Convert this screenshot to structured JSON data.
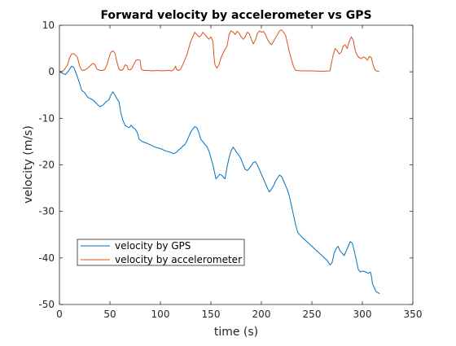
{
  "chart_data": {
    "type": "line",
    "title": "Forward velocity by accelerometer vs GPS",
    "xlabel": "time (s)",
    "ylabel": "velocity (m/s)",
    "xlim": [
      0,
      350
    ],
    "ylim": [
      -50,
      10
    ],
    "x_ticks": [
      0,
      50,
      100,
      150,
      200,
      250,
      300,
      350
    ],
    "y_ticks": [
      -50,
      -40,
      -30,
      -20,
      -10,
      0,
      10
    ],
    "grid": false,
    "legend_position": "lower-left",
    "series": [
      {
        "name": "velocity by GPS",
        "color": "#0072BD",
        "points": [
          [
            0,
            0
          ],
          [
            3,
            -0.3
          ],
          [
            6,
            -0.6
          ],
          [
            9,
            0.2
          ],
          [
            12,
            1.2
          ],
          [
            14,
            1.0
          ],
          [
            16,
            0.0
          ],
          [
            18,
            -1.2
          ],
          [
            20,
            -2.5
          ],
          [
            22,
            -4.0
          ],
          [
            25,
            -4.5
          ],
          [
            28,
            -5.5
          ],
          [
            31,
            -5.8
          ],
          [
            34,
            -6.2
          ],
          [
            37,
            -6.9
          ],
          [
            40,
            -7.5
          ],
          [
            43,
            -7.2
          ],
          [
            46,
            -6.5
          ],
          [
            49,
            -6.0
          ],
          [
            51,
            -5.0
          ],
          [
            53,
            -4.3
          ],
          [
            55,
            -5.0
          ],
          [
            57,
            -5.8
          ],
          [
            59,
            -6.5
          ],
          [
            61,
            -9.0
          ],
          [
            63,
            -10.5
          ],
          [
            65,
            -11.5
          ],
          [
            67,
            -11.8
          ],
          [
            69,
            -12.0
          ],
          [
            71,
            -11.5
          ],
          [
            73,
            -12.0
          ],
          [
            75,
            -12.3
          ],
          [
            77,
            -13.0
          ],
          [
            79,
            -14.5
          ],
          [
            82,
            -15.0
          ],
          [
            86,
            -15.3
          ],
          [
            90,
            -15.7
          ],
          [
            95,
            -16.2
          ],
          [
            100,
            -16.5
          ],
          [
            105,
            -17.0
          ],
          [
            110,
            -17.3
          ],
          [
            113,
            -17.6
          ],
          [
            116,
            -17.3
          ],
          [
            118,
            -16.8
          ],
          [
            120,
            -16.5
          ],
          [
            122,
            -16.0
          ],
          [
            124,
            -15.7
          ],
          [
            126,
            -15.0
          ],
          [
            128,
            -14.0
          ],
          [
            130,
            -13.0
          ],
          [
            132,
            -12.3
          ],
          [
            134,
            -11.8
          ],
          [
            136,
            -12.0
          ],
          [
            138,
            -13.0
          ],
          [
            140,
            -14.5
          ],
          [
            142,
            -15.0
          ],
          [
            144,
            -15.6
          ],
          [
            146,
            -16.0
          ],
          [
            148,
            -17.0
          ],
          [
            150,
            -18.5
          ],
          [
            152,
            -20.0
          ],
          [
            154,
            -22.0
          ],
          [
            155,
            -23.0
          ],
          [
            157,
            -22.5
          ],
          [
            159,
            -22.0
          ],
          [
            161,
            -22.3
          ],
          [
            163,
            -22.8
          ],
          [
            164,
            -23.0
          ],
          [
            166,
            -20.5
          ],
          [
            168,
            -18.5
          ],
          [
            170,
            -17.0
          ],
          [
            172,
            -16.2
          ],
          [
            174,
            -16.8
          ],
          [
            176,
            -17.5
          ],
          [
            178,
            -18.0
          ],
          [
            180,
            -18.8
          ],
          [
            182,
            -20.0
          ],
          [
            184,
            -21.0
          ],
          [
            186,
            -21.2
          ],
          [
            188,
            -20.8
          ],
          [
            190,
            -20.2
          ],
          [
            192,
            -19.5
          ],
          [
            194,
            -19.3
          ],
          [
            196,
            -20.0
          ],
          [
            198,
            -21.0
          ],
          [
            200,
            -22.0
          ],
          [
            202,
            -23.0
          ],
          [
            204,
            -24.0
          ],
          [
            206,
            -25.0
          ],
          [
            208,
            -25.8
          ],
          [
            210,
            -25.2
          ],
          [
            212,
            -24.5
          ],
          [
            214,
            -23.5
          ],
          [
            216,
            -22.8
          ],
          [
            218,
            -22.2
          ],
          [
            220,
            -22.5
          ],
          [
            222,
            -23.5
          ],
          [
            224,
            -24.5
          ],
          [
            226,
            -25.5
          ],
          [
            228,
            -27.0
          ],
          [
            230,
            -29.0
          ],
          [
            232,
            -31.0
          ],
          [
            234,
            -33.0
          ],
          [
            236,
            -34.5
          ],
          [
            240,
            -35.5
          ],
          [
            245,
            -36.5
          ],
          [
            250,
            -37.5
          ],
          [
            255,
            -38.5
          ],
          [
            260,
            -39.5
          ],
          [
            265,
            -40.5
          ],
          [
            268,
            -41.5
          ],
          [
            270,
            -41.0
          ],
          [
            272,
            -39.0
          ],
          [
            274,
            -38.0
          ],
          [
            276,
            -37.5
          ],
          [
            278,
            -38.5
          ],
          [
            280,
            -39.0
          ],
          [
            282,
            -39.5
          ],
          [
            284,
            -38.5
          ],
          [
            286,
            -37.5
          ],
          [
            288,
            -36.5
          ],
          [
            290,
            -36.8
          ],
          [
            292,
            -38.5
          ],
          [
            294,
            -40.5
          ],
          [
            296,
            -42.5
          ],
          [
            298,
            -43.0
          ],
          [
            300,
            -42.8
          ],
          [
            303,
            -43.0
          ],
          [
            306,
            -43.3
          ],
          [
            308,
            -43.0
          ],
          [
            309,
            -44.0
          ],
          [
            310,
            -45.5
          ],
          [
            311,
            -46.0
          ],
          [
            312,
            -46.5
          ],
          [
            313,
            -47.0
          ],
          [
            314,
            -47.3
          ],
          [
            316,
            -47.5
          ],
          [
            317,
            -47.7
          ]
        ]
      },
      {
        "name": "velocity by accelerometer",
        "color": "#D95319",
        "points": [
          [
            0,
            0
          ],
          [
            4,
            0.2
          ],
          [
            8,
            1.5
          ],
          [
            10,
            3.0
          ],
          [
            12,
            3.8
          ],
          [
            14,
            3.9
          ],
          [
            16,
            3.6
          ],
          [
            18,
            3.0
          ],
          [
            20,
            1.2
          ],
          [
            22,
            0.4
          ],
          [
            24,
            0.3
          ],
          [
            27,
            0.6
          ],
          [
            30,
            1.2
          ],
          [
            33,
            1.8
          ],
          [
            35,
            1.6
          ],
          [
            37,
            0.6
          ],
          [
            40,
            0.3
          ],
          [
            43,
            0.3
          ],
          [
            45,
            0.5
          ],
          [
            47,
            1.5
          ],
          [
            49,
            3.0
          ],
          [
            51,
            4.2
          ],
          [
            53,
            4.5
          ],
          [
            55,
            4.0
          ],
          [
            57,
            2.0
          ],
          [
            59,
            0.5
          ],
          [
            61,
            0.3
          ],
          [
            63,
            0.5
          ],
          [
            65,
            1.5
          ],
          [
            67,
            1.3
          ],
          [
            68,
            0.5
          ],
          [
            70,
            0.4
          ],
          [
            72,
            0.8
          ],
          [
            74,
            1.8
          ],
          [
            76,
            2.5
          ],
          [
            78,
            2.6
          ],
          [
            80,
            2.4
          ],
          [
            81,
            0.6
          ],
          [
            83,
            0.3
          ],
          [
            87,
            0.3
          ],
          [
            92,
            0.2
          ],
          [
            97,
            0.3
          ],
          [
            102,
            0.2
          ],
          [
            107,
            0.3
          ],
          [
            111,
            0.2
          ],
          [
            113,
            0.4
          ],
          [
            115,
            1.2
          ],
          [
            116,
            0.5
          ],
          [
            118,
            0.3
          ],
          [
            120,
            0.5
          ],
          [
            122,
            1.5
          ],
          [
            124,
            2.5
          ],
          [
            126,
            3.5
          ],
          [
            128,
            5.0
          ],
          [
            130,
            6.5
          ],
          [
            132,
            7.5
          ],
          [
            134,
            8.5
          ],
          [
            136,
            8.0
          ],
          [
            138,
            7.5
          ],
          [
            140,
            7.7
          ],
          [
            142,
            8.5
          ],
          [
            144,
            8.0
          ],
          [
            146,
            7.5
          ],
          [
            148,
            7.0
          ],
          [
            150,
            7.5
          ],
          [
            152,
            6.5
          ],
          [
            153,
            3.5
          ],
          [
            154,
            1.5
          ],
          [
            156,
            0.8
          ],
          [
            158,
            1.5
          ],
          [
            160,
            3.0
          ],
          [
            162,
            4.0
          ],
          [
            164,
            4.8
          ],
          [
            166,
            5.5
          ],
          [
            168,
            8.0
          ],
          [
            170,
            8.8
          ],
          [
            172,
            8.5
          ],
          [
            174,
            8.0
          ],
          [
            176,
            8.7
          ],
          [
            178,
            8.3
          ],
          [
            180,
            7.5
          ],
          [
            182,
            7.0
          ],
          [
            184,
            7.5
          ],
          [
            186,
            8.5
          ],
          [
            188,
            8.2
          ],
          [
            190,
            7.0
          ],
          [
            192,
            6.0
          ],
          [
            194,
            6.8
          ],
          [
            196,
            8.2
          ],
          [
            198,
            8.8
          ],
          [
            200,
            8.5
          ],
          [
            202,
            8.7
          ],
          [
            204,
            8.0
          ],
          [
            206,
            7.0
          ],
          [
            208,
            6.3
          ],
          [
            210,
            5.8
          ],
          [
            212,
            6.5
          ],
          [
            214,
            7.3
          ],
          [
            216,
            8.0
          ],
          [
            218,
            8.8
          ],
          [
            220,
            9.0
          ],
          [
            222,
            8.5
          ],
          [
            224,
            7.8
          ],
          [
            226,
            6.0
          ],
          [
            228,
            4.0
          ],
          [
            230,
            2.5
          ],
          [
            232,
            1.0
          ],
          [
            234,
            0.3
          ],
          [
            240,
            0.2
          ],
          [
            250,
            0.2
          ],
          [
            260,
            0.1
          ],
          [
            268,
            0.2
          ],
          [
            269,
            1.5
          ],
          [
            271,
            3.5
          ],
          [
            273,
            5.0
          ],
          [
            275,
            4.5
          ],
          [
            277,
            3.8
          ],
          [
            279,
            4.2
          ],
          [
            281,
            5.5
          ],
          [
            283,
            5.8
          ],
          [
            285,
            5.0
          ],
          [
            287,
            6.5
          ],
          [
            289,
            7.5
          ],
          [
            291,
            6.8
          ],
          [
            293,
            4.5
          ],
          [
            295,
            3.5
          ],
          [
            297,
            3.0
          ],
          [
            299,
            2.8
          ],
          [
            301,
            3.2
          ],
          [
            303,
            3.0
          ],
          [
            305,
            2.5
          ],
          [
            307,
            3.3
          ],
          [
            309,
            3.0
          ],
          [
            310,
            2.0
          ],
          [
            311,
            1.2
          ],
          [
            313,
            0.3
          ],
          [
            315,
            0.1
          ],
          [
            317,
            0.1
          ]
        ]
      }
    ]
  }
}
